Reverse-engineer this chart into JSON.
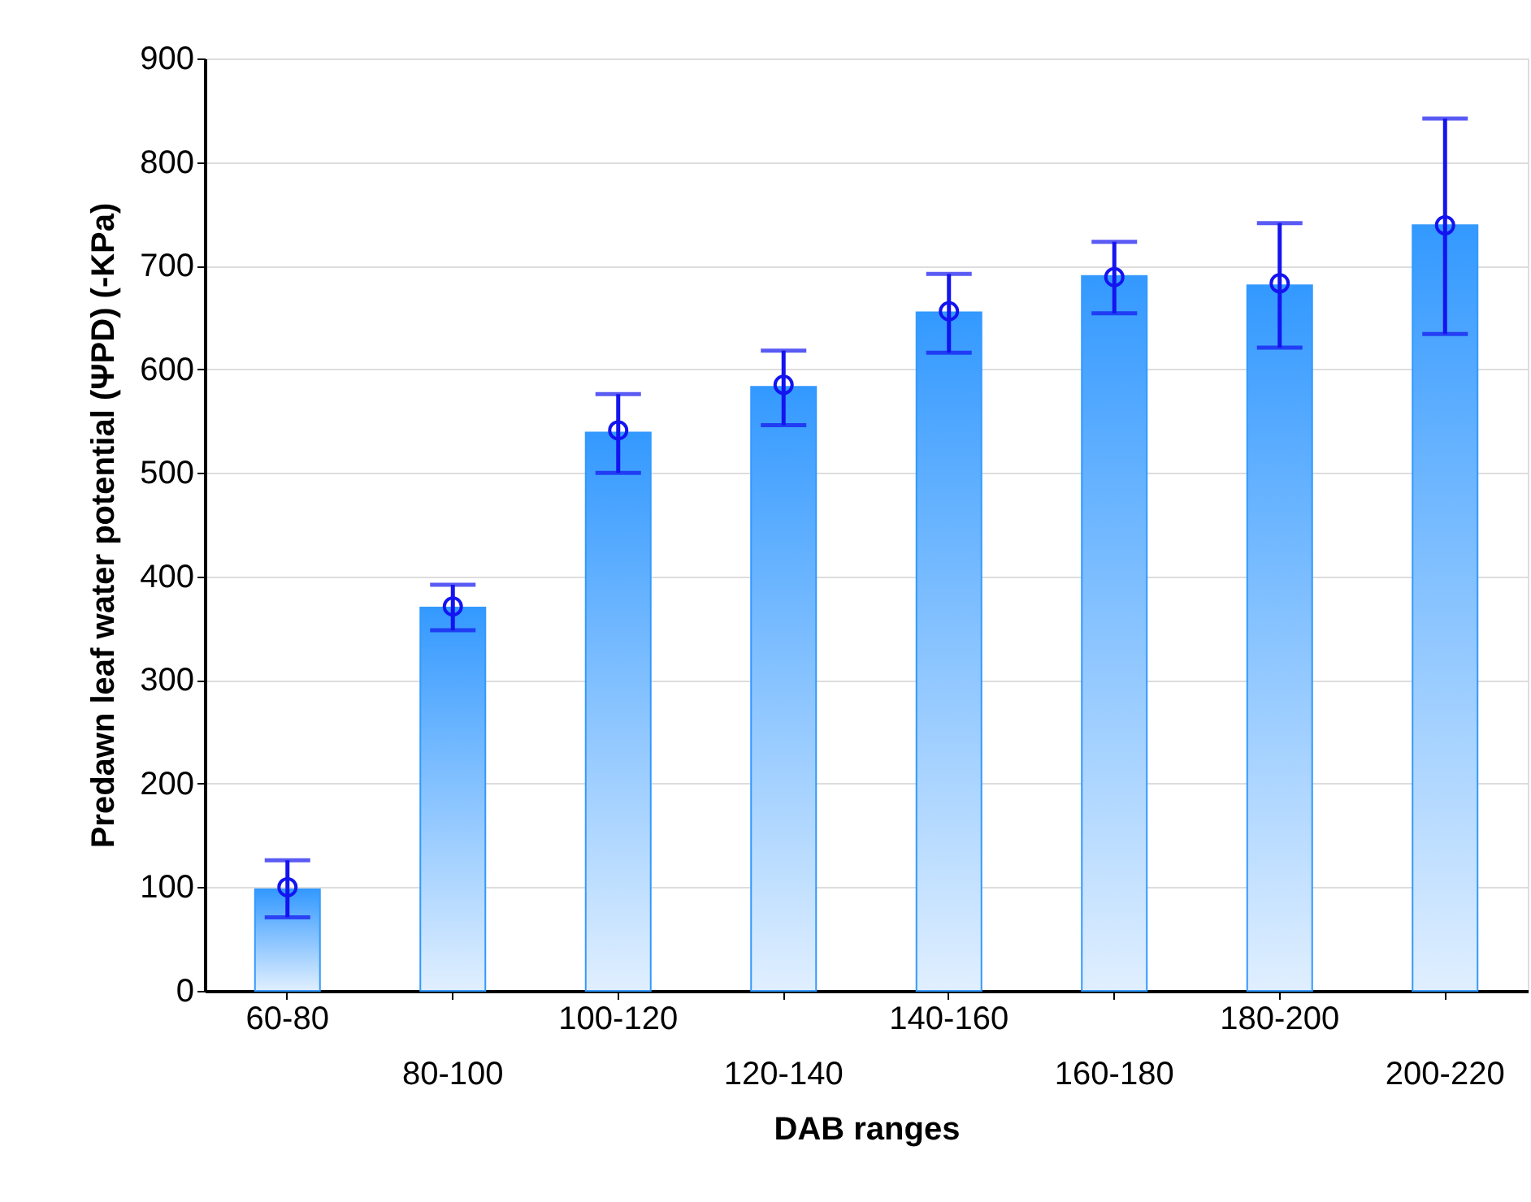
{
  "chart_data": {
    "type": "bar",
    "xlabel": "DAB ranges",
    "ylabel": "Predawn leaf water potential (ΨPD) (-KPa)",
    "categories": [
      "60-80",
      "80-100",
      "100-120",
      "120-140",
      "140-160",
      "160-180",
      "180-200",
      "200-220"
    ],
    "series": [
      {
        "color": "#3399ff",
        "values": [
          98,
          370,
          539,
          583,
          655,
          690,
          681,
          739
        ]
      },
      {
        "type": "scatter",
        "color": "#1414f0",
        "values": [
          100,
          371,
          541,
          585,
          656,
          689,
          683,
          739
        ],
        "errors": [
          [
            71,
            126
          ],
          [
            348,
            392
          ],
          [
            500,
            576
          ],
          [
            546,
            618
          ],
          [
            616,
            692
          ],
          [
            654,
            723
          ],
          [
            621,
            741
          ],
          [
            634,
            842
          ]
        ]
      }
    ],
    "ylim": [
      0,
      900
    ],
    "yticks": [
      0,
      100,
      200,
      300,
      400,
      500,
      600,
      700,
      800,
      900
    ],
    "grid": "y",
    "marker": "circle"
  }
}
